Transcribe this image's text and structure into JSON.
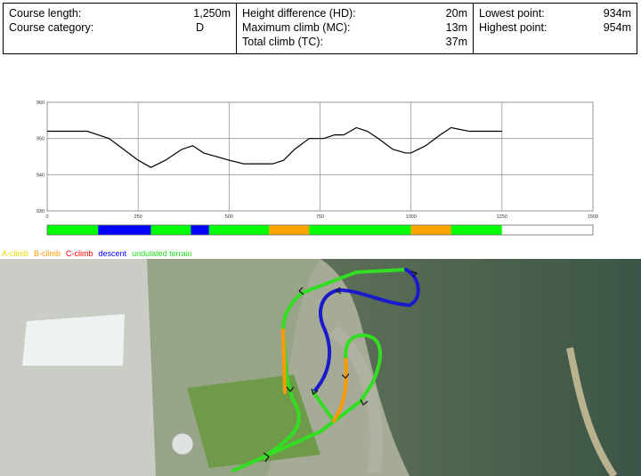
{
  "stats": {
    "col1": [
      {
        "label": "Course length:",
        "value": "1,250m"
      },
      {
        "label": "Course category:",
        "value": "D"
      }
    ],
    "col2": [
      {
        "label": "Height difference (HD):",
        "value": "20m"
      },
      {
        "label": "Maximum climb (MC):",
        "value": "13m"
      },
      {
        "label": "Total climb (TC):",
        "value": "37m"
      }
    ],
    "col3": [
      {
        "label": "Lowest point:",
        "value": "934m"
      },
      {
        "label": "Highest point:",
        "value": "954m"
      }
    ]
  },
  "chart_data": {
    "type": "line",
    "x": [
      0,
      110,
      140,
      170,
      210,
      250,
      285,
      325,
      370,
      400,
      430,
      500,
      540,
      620,
      650,
      680,
      720,
      760,
      790,
      815,
      850,
      880,
      910,
      950,
      985,
      1000,
      1040,
      1080,
      1110,
      1160,
      1250
    ],
    "y": [
      952,
      952,
      951,
      950,
      947,
      944,
      942,
      944,
      947,
      948,
      946,
      944,
      943,
      943,
      944,
      947,
      950,
      950,
      951,
      951,
      953,
      952,
      950,
      947,
      946,
      946,
      948,
      951,
      953,
      952,
      952
    ],
    "xlim": [
      0,
      1500
    ],
    "ylim": [
      930,
      960
    ],
    "xticks": [
      "0",
      "250",
      "500",
      "750",
      "1000",
      "1250",
      "1500"
    ],
    "yticks": [
      "930",
      "940",
      "950",
      "960"
    ],
    "grid": true,
    "segments": [
      {
        "from": 0,
        "to": 140,
        "color": "#00ff00"
      },
      {
        "from": 140,
        "to": 285,
        "color": "#0000ff"
      },
      {
        "from": 285,
        "to": 395,
        "color": "#00ff00"
      },
      {
        "from": 395,
        "to": 445,
        "color": "#0000ff"
      },
      {
        "from": 445,
        "to": 610,
        "color": "#00ff00"
      },
      {
        "from": 610,
        "to": 720,
        "color": "#ffa500"
      },
      {
        "from": 720,
        "to": 1000,
        "color": "#00ff00"
      },
      {
        "from": 1000,
        "to": 1110,
        "color": "#ffa500"
      },
      {
        "from": 1110,
        "to": 1250,
        "color": "#00ff00"
      },
      {
        "from": 1250,
        "to": 1500,
        "color": "#ffffff"
      }
    ]
  },
  "legend": [
    {
      "label": "A-climb",
      "color": "#ffff00"
    },
    {
      "label": "B-climb",
      "color": "#ffa500"
    },
    {
      "label": "C-climb",
      "color": "#ff0000"
    },
    {
      "label": "descent",
      "color": "#0000ff"
    },
    {
      "label": "undulated terrain",
      "color": "#00ff00"
    }
  ]
}
